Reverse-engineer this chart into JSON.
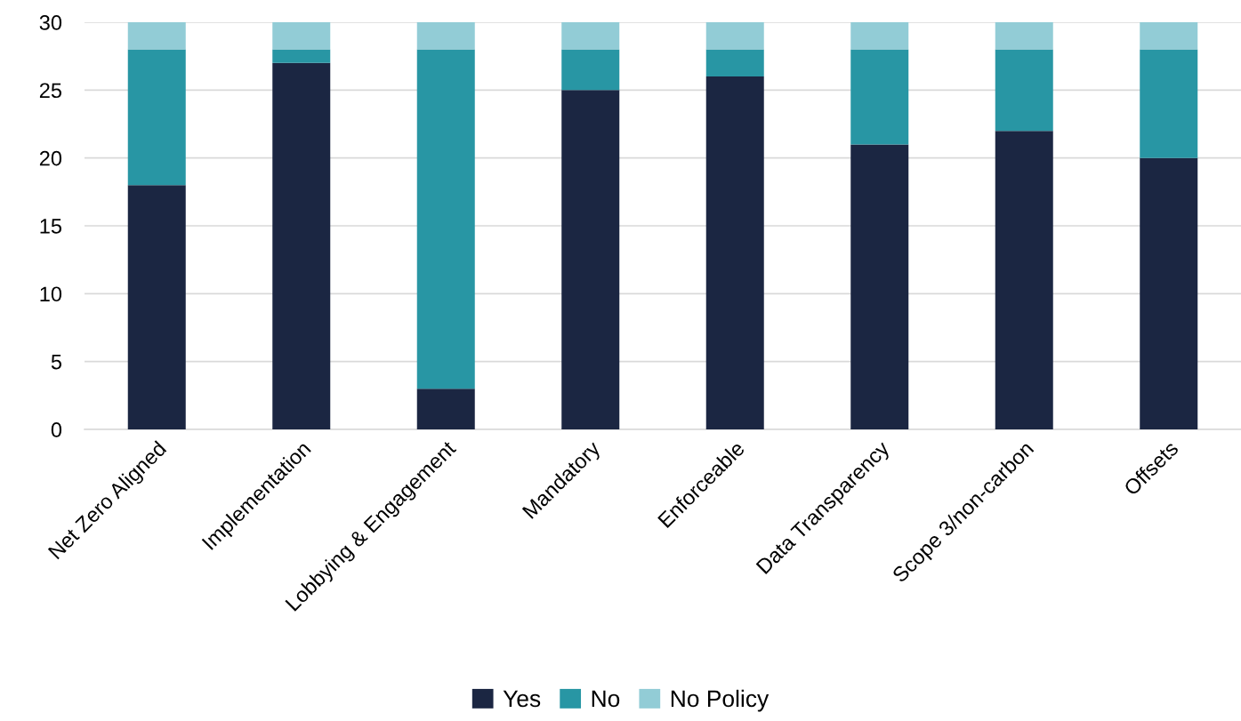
{
  "chart_data": {
    "type": "bar",
    "stacked": true,
    "categories": [
      "Net Zero Aligned",
      "Implementation",
      "Lobbying & Engagement",
      "Mandatory",
      "Enforceable",
      "Data Transparency",
      "Scope 3/non-carbon",
      "Offsets"
    ],
    "series": [
      {
        "name": "Yes",
        "color": "#1b2642",
        "values": [
          18,
          27,
          3,
          25,
          26,
          21,
          22,
          20
        ]
      },
      {
        "name": "No",
        "color": "#2896a4",
        "values": [
          10,
          1,
          25,
          3,
          2,
          7,
          6,
          8
        ]
      },
      {
        "name": "No Policy",
        "color": "#92ccd6",
        "values": [
          2,
          2,
          2,
          2,
          2,
          2,
          2,
          2
        ]
      }
    ],
    "ylim": [
      0,
      30
    ],
    "yticks": [
      0,
      5,
      10,
      15,
      20,
      25,
      30
    ],
    "grid": "y",
    "legend": "bottom"
  }
}
